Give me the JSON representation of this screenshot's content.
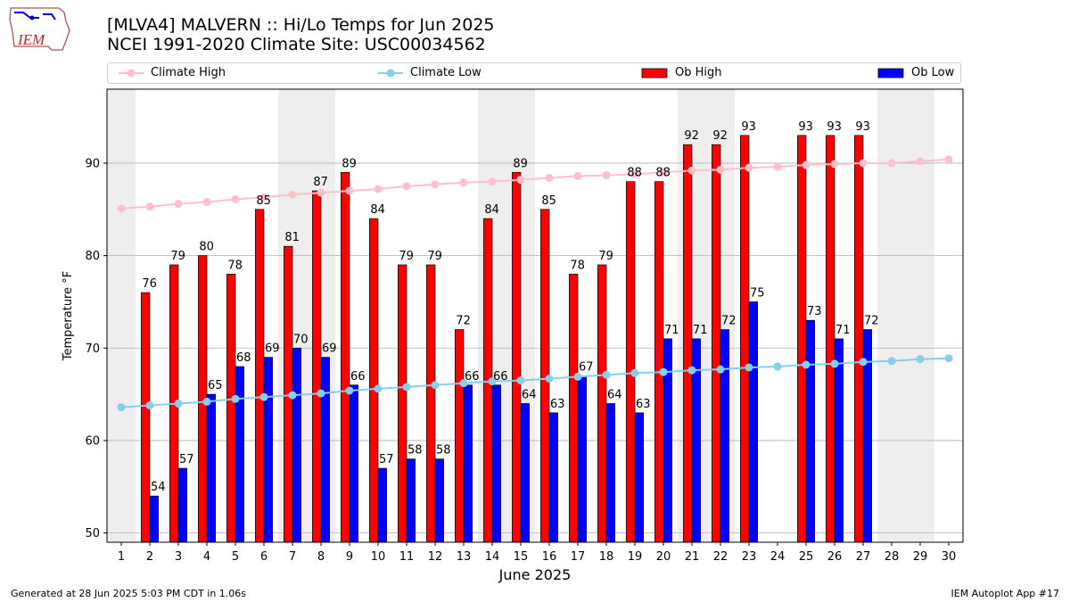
{
  "header": {
    "title_line1": "[MLVA4] MALVERN :: Hi/Lo Temps for Jun 2025",
    "title_line2": "NCEI 1991-2020 Climate Site: USC00034562",
    "logo_text": "IEM"
  },
  "footer": {
    "generated": "Generated at 28 Jun 2025 5:03 PM CDT in 1.06s",
    "app": "IEM Autoplot App #17"
  },
  "legend": {
    "climate_high": "Climate High",
    "climate_low": "Climate Low",
    "ob_high": "Ob High",
    "ob_low": "Ob Low"
  },
  "colors": {
    "climate_high": "#ffc0cb",
    "climate_low": "#87ceeb",
    "ob_high": "#ff0000",
    "ob_low": "#0000ff",
    "weekend_band": "#eeeeee",
    "grid": "#b0b0b0"
  },
  "chart_data": {
    "type": "bar",
    "title": "[MLVA4] MALVERN :: Hi/Lo Temps for Jun 2025",
    "subtitle": "NCEI 1991-2020 Climate Site: USC00034562",
    "xlabel": "June 2025",
    "ylabel": "Temperature °F",
    "ylim": [
      49,
      98
    ],
    "xlim": [
      0.5,
      30.5
    ],
    "yticks": [
      50,
      60,
      70,
      80,
      90
    ],
    "x": [
      1,
      2,
      3,
      4,
      5,
      6,
      7,
      8,
      9,
      10,
      11,
      12,
      13,
      14,
      15,
      16,
      17,
      18,
      19,
      20,
      21,
      22,
      23,
      24,
      25,
      26,
      27,
      28,
      29,
      30
    ],
    "grid": "horizontal",
    "legend_position": "top",
    "shaded_days": [
      1,
      7,
      8,
      14,
      15,
      21,
      22,
      28,
      29
    ],
    "series": [
      {
        "name": "Ob High",
        "type": "bar",
        "values": [
          null,
          76,
          79,
          80,
          78,
          85,
          81,
          87,
          89,
          84,
          79,
          79,
          72,
          84,
          89,
          85,
          78,
          79,
          88,
          88,
          92,
          92,
          93,
          null,
          93,
          93,
          93,
          null,
          null,
          null
        ]
      },
      {
        "name": "Ob Low",
        "type": "bar",
        "values": [
          null,
          54,
          57,
          65,
          68,
          69,
          70,
          69,
          66,
          57,
          58,
          58,
          66,
          66,
          64,
          63,
          67,
          64,
          63,
          71,
          71,
          72,
          75,
          null,
          73,
          71,
          72,
          null,
          null,
          null
        ]
      },
      {
        "name": "Climate High",
        "type": "line",
        "values": [
          85.1,
          85.3,
          85.6,
          85.8,
          86.1,
          86.3,
          86.6,
          86.8,
          87.0,
          87.2,
          87.5,
          87.7,
          87.9,
          88.0,
          88.2,
          88.4,
          88.6,
          88.7,
          88.8,
          89.0,
          89.2,
          89.3,
          89.5,
          89.6,
          89.8,
          89.9,
          90.0,
          90.0,
          90.2,
          90.4
        ]
      },
      {
        "name": "Climate Low",
        "type": "line",
        "values": [
          63.6,
          63.8,
          64.0,
          64.2,
          64.5,
          64.7,
          64.9,
          65.1,
          65.4,
          65.6,
          65.8,
          66.0,
          66.2,
          66.4,
          66.5,
          66.7,
          66.9,
          67.1,
          67.3,
          67.4,
          67.6,
          67.7,
          67.9,
          68.0,
          68.2,
          68.3,
          68.5,
          68.6,
          68.8,
          68.9
        ]
      }
    ]
  }
}
